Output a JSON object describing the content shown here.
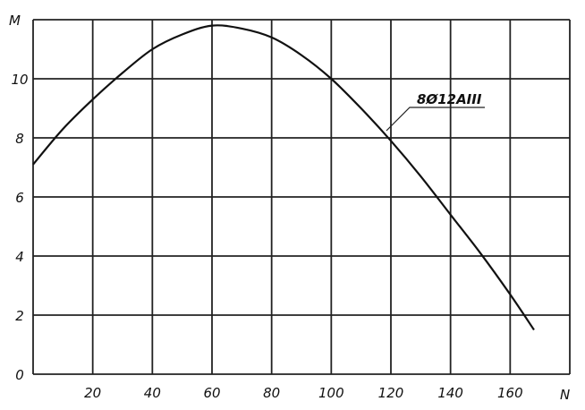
{
  "chart_data": {
    "type": "line",
    "title": "",
    "xlabel": "N",
    "ylabel": "M",
    "xlim": [
      0,
      180
    ],
    "ylim": [
      0,
      12
    ],
    "x_ticks": [
      20,
      40,
      60,
      80,
      100,
      120,
      140,
      160
    ],
    "y_ticks": [
      0,
      2,
      4,
      6,
      8,
      10
    ],
    "grid": true,
    "series": [
      {
        "name": "8Ø12AIII",
        "x": [
          0,
          10,
          20,
          30,
          40,
          50,
          60,
          70,
          80,
          90,
          100,
          110,
          120,
          130,
          140,
          150,
          160,
          168
        ],
        "y": [
          7.1,
          8.3,
          9.3,
          10.2,
          11.0,
          11.5,
          11.8,
          11.7,
          11.4,
          10.8,
          10.0,
          9.0,
          7.9,
          6.7,
          5.4,
          4.1,
          2.7,
          1.5
        ]
      }
    ],
    "annotation": "8Ø12AIII",
    "colors": {
      "line": "#111111",
      "grid": "#222222",
      "background": "#ffffff"
    }
  }
}
